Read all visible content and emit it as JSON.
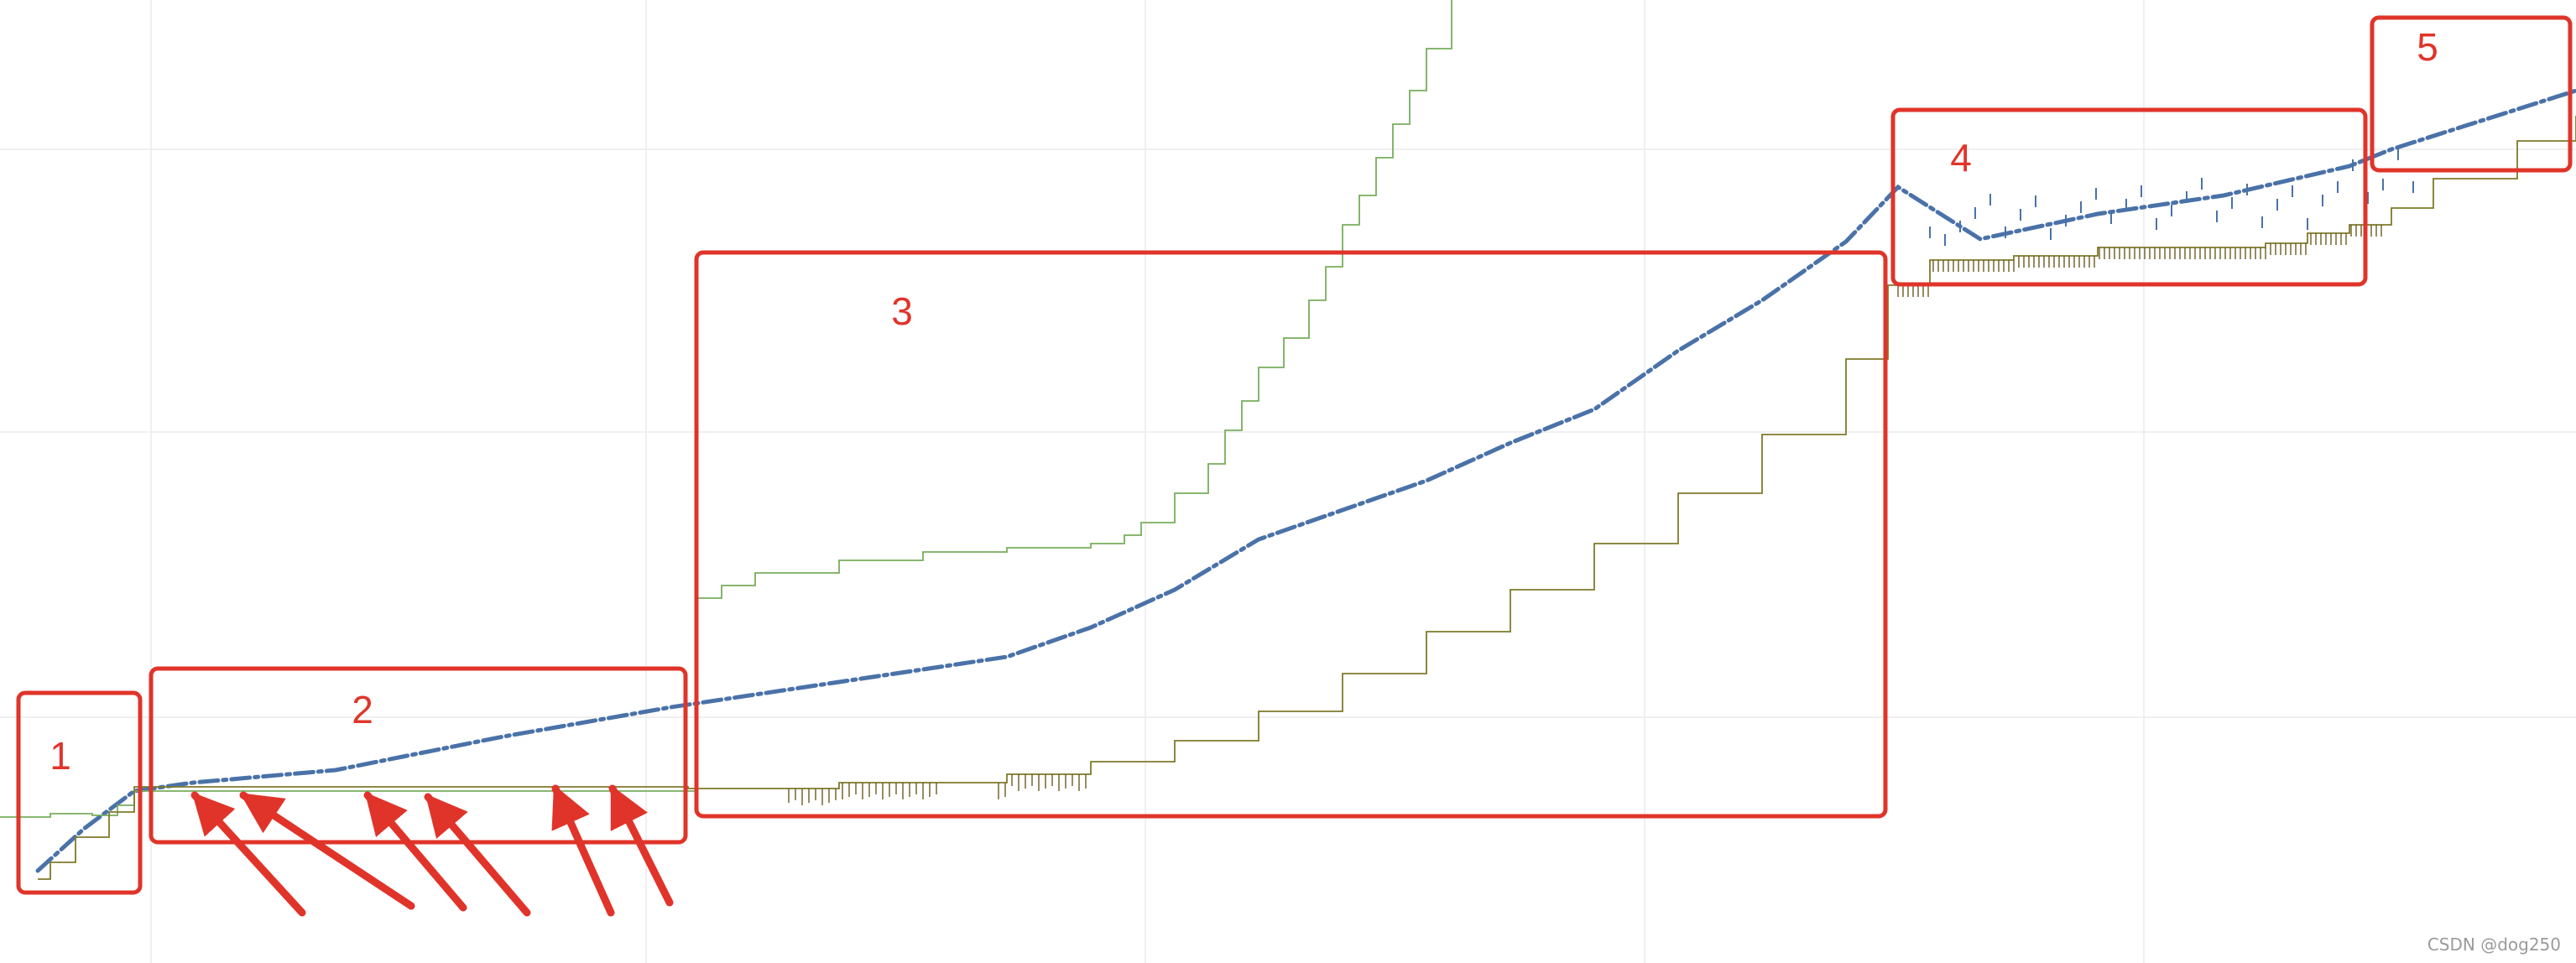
{
  "chart_data": {
    "type": "line",
    "title": "",
    "xlabel": "",
    "ylabel": "",
    "xlim": [
      0,
      3070
    ],
    "ylim": [
      0,
      1148
    ],
    "grid": true,
    "series": [
      {
        "color": "#4a72a8",
        "style": "dotted-thick",
        "x": [
          45,
          100,
          160,
          230,
          400,
          600,
          800,
          1000,
          1200,
          1300,
          1400,
          1500,
          1600,
          1700,
          1800,
          1900,
          2000,
          2100,
          2200,
          2262,
          2360,
          2500,
          2650,
          2800,
          2850,
          3070
        ],
        "y": [
          110,
          160,
          205,
          215,
          230,
          270,
          305,
          335,
          365,
          400,
          445,
          505,
          540,
          575,
          620,
          660,
          730,
          790,
          860,
          925,
          863,
          893,
          915,
          950,
          970,
          1040
        ]
      },
      {
        "color": "#78ad5c",
        "style": "step",
        "x": [
          0,
          60,
          110,
          140,
          160,
          400,
          820,
          830,
          860,
          900,
          1000,
          1100,
          1200,
          1300,
          1340,
          1360,
          1400,
          1440,
          1460,
          1480,
          1500,
          1530,
          1560,
          1580,
          1600,
          1620,
          1640,
          1660,
          1680,
          1700,
          1730
        ],
        "y": [
          174,
          178,
          176,
          188,
          205,
          205,
          205,
          435,
          450,
          465,
          480,
          490,
          495,
          500,
          510,
          525,
          560,
          595,
          635,
          670,
          710,
          745,
          790,
          830,
          880,
          915,
          960,
          1000,
          1040,
          1090,
          1148
        ]
      },
      {
        "color": "#7f7a2a",
        "style": "step",
        "x": [
          45,
          60,
          90,
          130,
          160,
          400,
          820,
          1000,
          1200,
          1300,
          1400,
          1500,
          1600,
          1700,
          1800,
          1900,
          2000,
          2100,
          2200,
          2250,
          2300,
          2400,
          2500,
          2600,
          2700,
          2750,
          2800,
          2850,
          2900,
          3000,
          3070
        ],
        "y": [
          100,
          120,
          150,
          180,
          210,
          210,
          208,
          215,
          225,
          240,
          265,
          300,
          345,
          395,
          445,
          500,
          560,
          630,
          720,
          808,
          838,
          843,
          853,
          853,
          858,
          870,
          880,
          900,
          935,
          980,
          1010
        ]
      }
    ],
    "annotations": {
      "boxes": [
        {
          "label": "1"
        },
        {
          "label": "2"
        },
        {
          "label": "3"
        },
        {
          "label": "4"
        },
        {
          "label": "5"
        }
      ],
      "arrows": 6
    }
  },
  "watermark": "CSDN @dog250"
}
